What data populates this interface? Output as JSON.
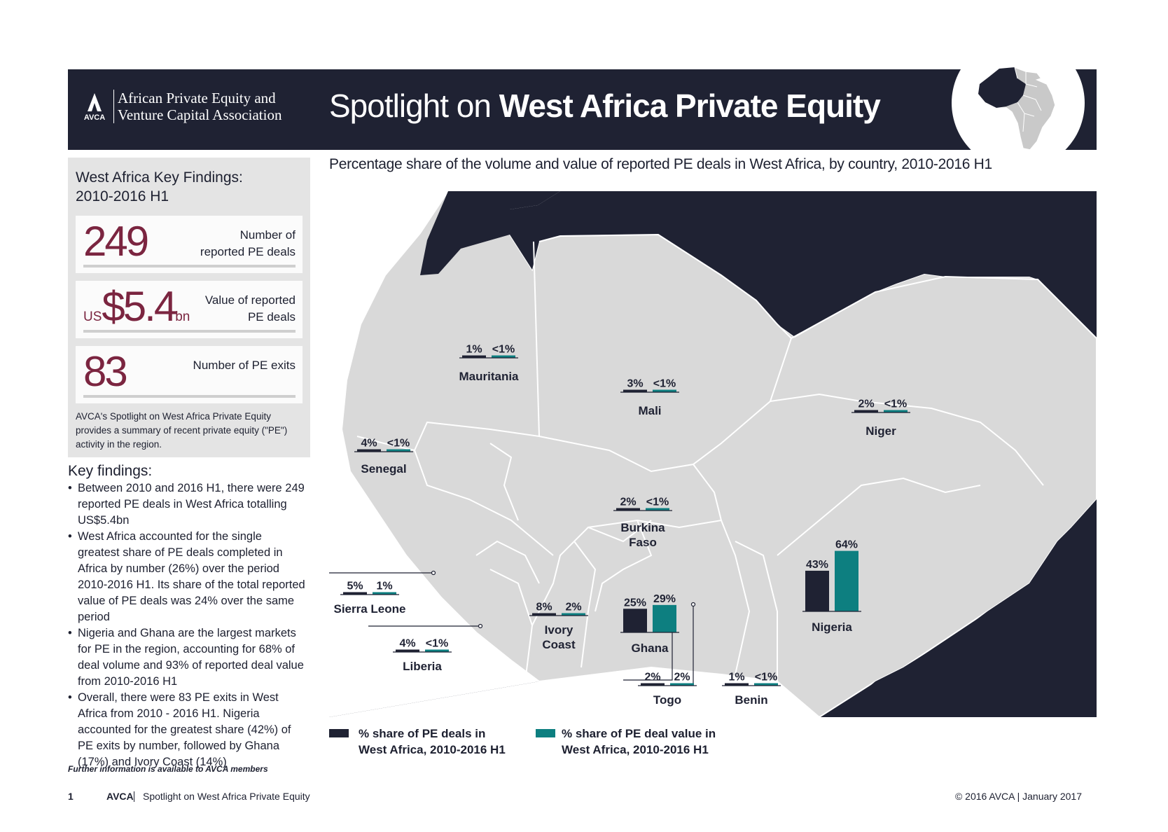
{
  "header": {
    "org_line1": "African Private Equity and",
    "org_line2": "Venture Capital Association",
    "logo_text": "AVCA",
    "title_light": "Spotlight on ",
    "title_bold": "West Africa Private Equity"
  },
  "findings_panel": {
    "heading_line1": "West Africa Key Findings:",
    "heading_line2": "2010-2016 H1",
    "stats": [
      {
        "prefix": "",
        "value": "249",
        "suffix": "",
        "label_line1": "Number of",
        "label_line2": "reported PE deals"
      },
      {
        "prefix": "US",
        "value": "$5.4",
        "suffix": "bn",
        "label_line1": "Value of reported",
        "label_line2": "PE deals"
      },
      {
        "prefix": "",
        "value": "83",
        "suffix": "",
        "label_line1": "",
        "label_line2": "Number of PE exits"
      }
    ],
    "description": "AVCA's Spotlight on West Africa Private Equity provides a summary of recent private equity (\"PE\") activity in the region."
  },
  "key_findings": {
    "heading": "Key findings:",
    "items": [
      "Between 2010 and 2016 H1, there were 249 reported PE deals in West Africa totalling US$5.4bn",
      "West Africa accounted for the single greatest share of PE deals completed in Africa by number (26%) over the period 2010-2016 H1. Its share of the total reported value of PE deals was 24% over the same period",
      "Nigeria and Ghana are the largest markets for PE in the region, accounting for 68% of deal volume and 93% of reported deal value from 2010-2016 H1",
      "Overall, there were 83 PE exits in West Africa from 2010 - 2016 H1. Nigeria accounted for the greatest share (42%) of PE exits by number, followed by Ghana (17%) and Ivory Coast (14%)"
    ],
    "further_info": "Further information is available to AVCA members"
  },
  "chart_title": "Percentage share of the volume and value of reported PE deals in West Africa, by country, 2010-2016 H1",
  "chart_data": {
    "type": "bar",
    "title": "Percentage share of the volume and value of reported PE deals in West Africa, by country, 2010-2016 H1",
    "categories": [
      "Mauritania",
      "Mali",
      "Niger",
      "Senegal",
      "Burkina Faso",
      "Sierra Leone",
      "Ivory Coast",
      "Ghana",
      "Nigeria",
      "Liberia",
      "Togo",
      "Benin"
    ],
    "series": [
      {
        "name": "% share of PE deals in West Africa, 2010-2016 H1",
        "color": "#1f2233",
        "values": [
          1,
          3,
          2,
          4,
          2,
          5,
          8,
          25,
          43,
          4,
          2,
          1
        ],
        "labels": [
          "1%",
          "3%",
          "2%",
          "4%",
          "2%",
          "5%",
          "8%",
          "25%",
          "43%",
          "4%",
          "2%",
          "1%"
        ]
      },
      {
        "name": "% share of PE deal value in West Africa, 2010-2016 H1",
        "color": "#0d7f80",
        "values": [
          0.5,
          0.5,
          0.5,
          0.5,
          0.5,
          1,
          2,
          29,
          64,
          0.5,
          2,
          0.5
        ],
        "labels": [
          "<1%",
          "<1%",
          "<1%",
          "<1%",
          "<1%",
          "1%",
          "2%",
          "29%",
          "64%",
          "<1%",
          "2%",
          "<1%"
        ]
      }
    ],
    "legend_placement": "bottom-left"
  },
  "legend": {
    "deals_line1": "% share of PE deals in",
    "deals_line2": "West Africa, 2010-2016 H1",
    "value_line1": "% share of PE deal value in",
    "value_line2": "West Africa, 2010-2016 H1",
    "deals_color": "#1f2233",
    "value_color": "#0d7f80"
  },
  "colors": {
    "navy": "#1f2233",
    "teal": "#0d7f80",
    "maroon": "#7b2540",
    "land": "#d9d9d9"
  },
  "footer": {
    "page_number": "1",
    "brand": "AVCA",
    "publication": "Spotlight on West Africa Private Equity",
    "copyright": "© 2016 AVCA  |  January 2017"
  }
}
